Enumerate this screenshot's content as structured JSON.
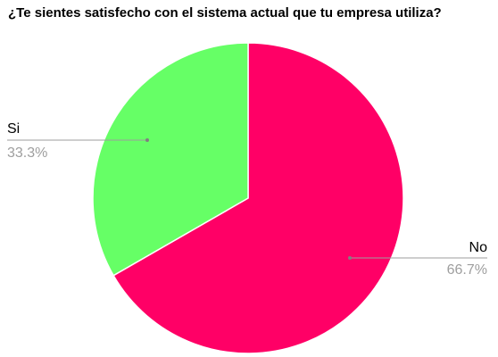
{
  "chart_data": {
    "type": "pie",
    "title": "¿Te sientes satisfecho con el sistema actual que tu empresa utiliza?",
    "slices": [
      {
        "label": "No",
        "value": 66.7,
        "percent_label": "66.7%",
        "color": "#ff0066"
      },
      {
        "label": "Si",
        "value": 33.3,
        "percent_label": "33.3%",
        "color": "#66ff66"
      }
    ],
    "legend": "none",
    "label_style": "callout-lines",
    "leader_color": "#9e9e9e"
  }
}
